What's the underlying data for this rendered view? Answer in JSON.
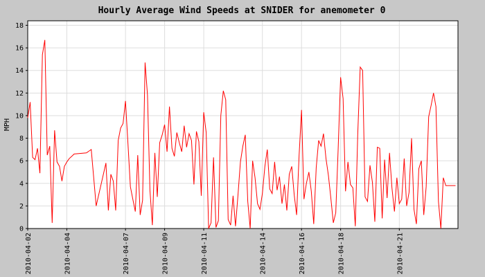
{
  "chart_data": {
    "type": "line",
    "title": "Hourly Average Wind Speeds at SNIDER for anemometer 0",
    "xlabel": "",
    "ylabel": "MPH",
    "grid": true,
    "legend": "none",
    "colors": {
      "background": "#c8c8c8",
      "plot_background": "#ffffff",
      "grid": "#dddddd",
      "series": "#ff0000",
      "text": "#000000"
    },
    "ylim": [
      0,
      18.4
    ],
    "yticks": [
      0,
      2,
      4,
      6,
      8,
      10,
      12,
      14,
      16,
      18
    ],
    "xlim": [
      "2010-04-02",
      "2010-04-24"
    ],
    "xticks": [
      "2010-04-02",
      "2010-04-04",
      "2010-04-07",
      "2010-04-09",
      "2010-04-11",
      "2010-04-14",
      "2010-04-16",
      "2010-04-18",
      "2010-04-21"
    ],
    "series": [
      {
        "x": [
          "2010-04-02 00:00",
          "2010-04-02 03:00",
          "2010-04-02 06:00",
          "2010-04-02 09:00",
          "2010-04-02 12:00",
          "2010-04-02 15:00",
          "2010-04-02 18:00",
          "2010-04-02 21:00",
          "2010-04-03 00:00",
          "2010-04-03 03:00",
          "2010-04-03 06:00",
          "2010-04-03 09:00",
          "2010-04-03 12:00",
          "2010-04-03 15:00",
          "2010-04-03 18:00",
          "2010-04-03 21:00",
          "2010-04-04 00:00",
          "2010-04-04 03:00",
          "2010-04-04 06:00",
          "2010-04-04 09:00",
          "2010-04-05 00:00",
          "2010-04-05 06:00",
          "2010-04-05 12:00",
          "2010-04-06 00:00",
          "2010-04-06 03:00",
          "2010-04-06 06:00",
          "2010-04-06 09:00",
          "2010-04-06 12:00",
          "2010-04-06 15:00",
          "2010-04-06 18:00",
          "2010-04-06 21:00",
          "2010-04-07 00:00",
          "2010-04-07 03:00",
          "2010-04-07 06:00",
          "2010-04-07 09:00",
          "2010-04-07 12:00",
          "2010-04-07 15:00",
          "2010-04-07 18:00",
          "2010-04-07 21:00",
          "2010-04-08 00:00",
          "2010-04-08 03:00",
          "2010-04-08 06:00",
          "2010-04-08 09:00",
          "2010-04-08 12:00",
          "2010-04-08 15:00",
          "2010-04-08 18:00",
          "2010-04-08 21:00",
          "2010-04-09 00:00",
          "2010-04-09 03:00",
          "2010-04-09 06:00",
          "2010-04-09 09:00",
          "2010-04-09 12:00",
          "2010-04-09 15:00",
          "2010-04-09 18:00",
          "2010-04-09 21:00",
          "2010-04-10 00:00",
          "2010-04-10 03:00",
          "2010-04-10 06:00",
          "2010-04-10 09:00",
          "2010-04-10 12:00",
          "2010-04-10 15:00",
          "2010-04-10 18:00",
          "2010-04-10 21:00",
          "2010-04-11 00:00",
          "2010-04-11 03:00",
          "2010-04-11 06:00",
          "2010-04-11 09:00",
          "2010-04-11 12:00",
          "2010-04-11 15:00",
          "2010-04-11 18:00",
          "2010-04-11 21:00",
          "2010-04-12 00:00",
          "2010-04-12 03:00",
          "2010-04-12 06:00",
          "2010-04-12 09:00",
          "2010-04-12 12:00",
          "2010-04-12 15:00",
          "2010-04-12 18:00",
          "2010-04-12 21:00",
          "2010-04-13 00:00",
          "2010-04-13 03:00",
          "2010-04-13 06:00",
          "2010-04-13 09:00",
          "2010-04-13 12:00",
          "2010-04-13 15:00",
          "2010-04-13 18:00",
          "2010-04-13 21:00",
          "2010-04-14 00:00",
          "2010-04-14 03:00",
          "2010-04-14 06:00",
          "2010-04-14 09:00",
          "2010-04-14 12:00",
          "2010-04-14 15:00",
          "2010-04-14 18:00",
          "2010-04-14 21:00",
          "2010-04-15 00:00",
          "2010-04-15 03:00",
          "2010-04-15 06:00",
          "2010-04-15 09:00",
          "2010-04-15 12:00",
          "2010-04-15 15:00",
          "2010-04-15 18:00",
          "2010-04-15 21:00",
          "2010-04-16 00:00",
          "2010-04-16 03:00",
          "2010-04-16 06:00",
          "2010-04-16 09:00",
          "2010-04-16 12:00",
          "2010-04-16 15:00",
          "2010-04-16 18:00",
          "2010-04-16 21:00",
          "2010-04-17 00:00",
          "2010-04-17 03:00",
          "2010-04-17 06:00",
          "2010-04-17 09:00",
          "2010-04-17 12:00",
          "2010-04-17 15:00",
          "2010-04-17 18:00",
          "2010-04-17 21:00",
          "2010-04-18 00:00",
          "2010-04-18 03:00",
          "2010-04-18 06:00",
          "2010-04-18 09:00",
          "2010-04-18 12:00",
          "2010-04-18 15:00",
          "2010-04-18 18:00",
          "2010-04-18 21:00",
          "2010-04-19 00:00",
          "2010-04-19 03:00",
          "2010-04-19 06:00",
          "2010-04-19 09:00",
          "2010-04-19 12:00",
          "2010-04-19 15:00",
          "2010-04-19 18:00",
          "2010-04-19 21:00",
          "2010-04-20 00:00",
          "2010-04-20 03:00",
          "2010-04-20 06:00",
          "2010-04-20 09:00",
          "2010-04-20 12:00",
          "2010-04-20 15:00",
          "2010-04-20 18:00",
          "2010-04-20 21:00",
          "2010-04-21 00:00",
          "2010-04-21 03:00",
          "2010-04-21 06:00",
          "2010-04-21 09:00",
          "2010-04-21 12:00",
          "2010-04-21 15:00",
          "2010-04-21 18:00",
          "2010-04-21 21:00",
          "2010-04-22 00:00",
          "2010-04-22 03:00",
          "2010-04-22 06:00",
          "2010-04-22 09:00",
          "2010-04-22 12:00",
          "2010-04-22 15:00",
          "2010-04-22 18:00",
          "2010-04-22 21:00",
          "2010-04-23 00:00",
          "2010-04-23 03:00",
          "2010-04-23 06:00",
          "2010-04-23 09:00",
          "2010-04-23 12:00",
          "2010-04-23 15:00",
          "2010-04-23 18:00",
          "2010-04-23 21:00"
        ],
        "values": [
          9.8,
          11.2,
          6.3,
          6.1,
          7.1,
          4.9,
          15.4,
          16.7,
          6.5,
          7.3,
          0.5,
          8.7,
          5.9,
          5.5,
          4.2,
          5.5,
          5.9,
          6.2,
          6.4,
          6.6,
          6.7,
          7.0,
          2.0,
          5.8,
          1.6,
          4.8,
          4.2,
          1.6,
          7.8,
          8.9,
          9.3,
          11.3,
          7.5,
          3.7,
          2.6,
          1.5,
          6.5,
          1.2,
          2.5,
          14.7,
          11.8,
          3.4,
          0.3,
          6.7,
          2.8,
          7.6,
          8.3,
          9.2,
          6.8,
          10.8,
          7.1,
          6.4,
          8.5,
          7.6,
          6.8,
          9.1,
          7.2,
          8.4,
          7.8,
          3.9,
          8.6,
          7.7,
          2.9,
          10.3,
          8.5,
          0.0,
          0.5,
          6.3,
          0.1,
          0.7,
          10.0,
          12.2,
          11.4,
          0.8,
          0.3,
          2.9,
          0.2,
          2.9,
          5.9,
          7.3,
          8.3,
          2.4,
          0.0,
          6.0,
          4.5,
          2.2,
          1.7,
          3.1,
          5.5,
          7.0,
          3.5,
          3.1,
          5.9,
          3.4,
          4.6,
          2.2,
          3.9,
          1.6,
          4.8,
          5.5,
          3.0,
          1.2,
          6.5,
          10.5,
          2.6,
          4.0,
          5.0,
          3.3,
          0.4,
          5.4,
          7.8,
          7.3,
          8.4,
          6.2,
          4.7,
          2.7,
          0.5,
          1.4,
          7.1,
          13.4,
          11.5,
          3.3,
          5.9,
          3.9,
          3.6,
          0.2,
          8.3,
          14.3,
          14.0,
          2.8,
          2.4,
          5.6,
          4.1,
          0.6,
          7.2,
          7.1,
          0.9,
          6.1,
          2.7,
          6.7,
          3.6,
          1.5,
          4.5,
          2.2,
          2.6,
          6.2,
          2.0,
          3.2,
          8.0,
          1.7,
          0.4,
          5.3,
          6.0,
          1.2,
          3.7,
          9.9,
          10.9,
          12.0,
          10.8,
          2.4,
          0.0,
          4.5,
          3.8,
          3.8,
          3.8,
          3.8,
          3.8
        ]
      }
    ]
  }
}
